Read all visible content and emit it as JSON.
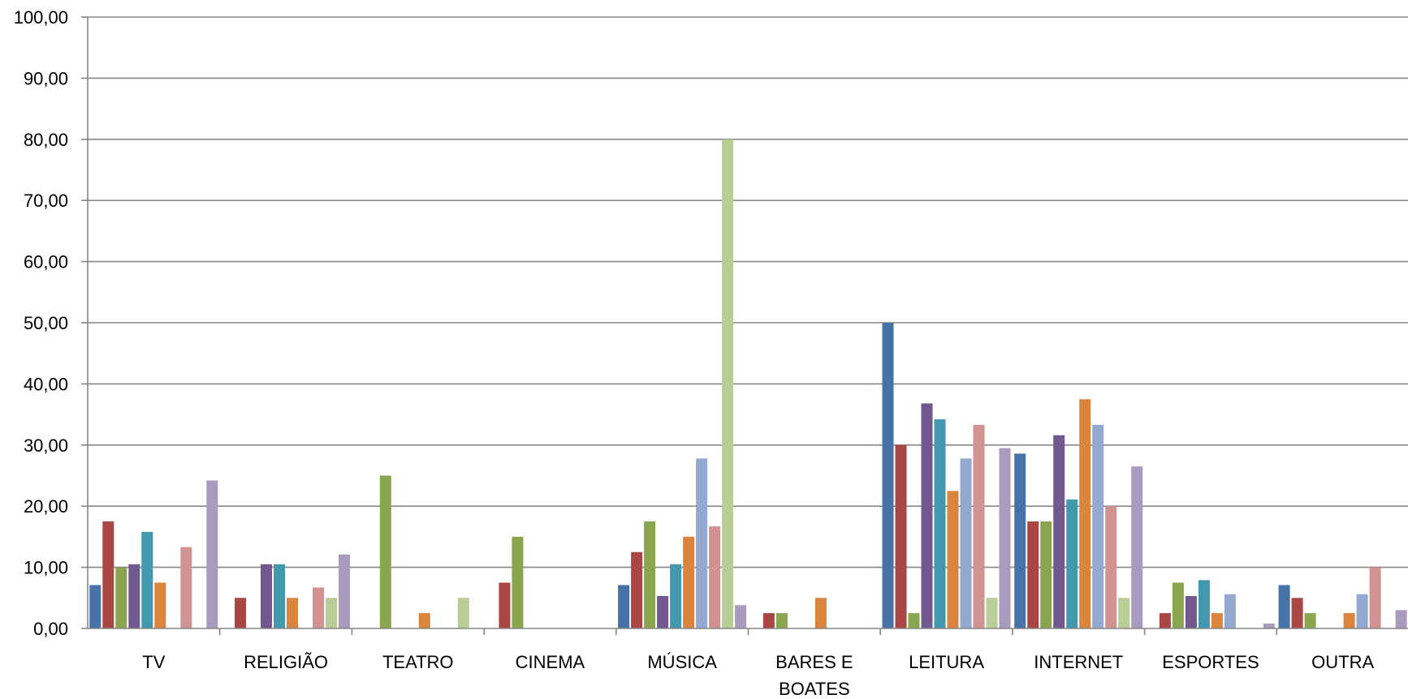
{
  "chart_data": {
    "type": "bar",
    "categories": [
      "TV",
      "RELIGIÃO",
      "TEATRO",
      "CINEMA",
      "MÚSICA",
      "BARES E BOATES",
      "LEITURA",
      "INTERNET",
      "ESPORTES",
      "OUTRA"
    ],
    "category_label_lines": [
      [
        "TV"
      ],
      [
        "RELIGIÃO"
      ],
      [
        "TEATRO"
      ],
      [
        "CINEMA"
      ],
      [
        "MÚSICA"
      ],
      [
        "BARES E",
        "BOATES"
      ],
      [
        "LEITURA"
      ],
      [
        "INTERNET"
      ],
      [
        "ESPORTES"
      ],
      [
        "OUTRA"
      ]
    ],
    "ylim": [
      0,
      100
    ],
    "yticks": [
      0,
      10,
      20,
      30,
      40,
      50,
      60,
      70,
      80,
      90,
      100
    ],
    "ytick_labels": [
      "0,00",
      "10,00",
      "20,00",
      "30,00",
      "40,00",
      "50,00",
      "60,00",
      "70,00",
      "80,00",
      "90,00",
      "100,00"
    ],
    "grid": true,
    "legend": "none",
    "series": [
      {
        "color": "#4572A7",
        "values": [
          7.1,
          0,
          0,
          0,
          7.1,
          0,
          50.0,
          28.6,
          0,
          7.1
        ]
      },
      {
        "color": "#AA4643",
        "values": [
          17.5,
          5.0,
          0,
          7.5,
          12.5,
          2.5,
          30.0,
          17.5,
          2.5,
          5.0
        ]
      },
      {
        "color": "#89A54E",
        "values": [
          10.0,
          0,
          25.0,
          15.0,
          17.5,
          2.5,
          2.5,
          17.5,
          7.5,
          2.5
        ]
      },
      {
        "color": "#71588F",
        "values": [
          10.5,
          10.5,
          0,
          0,
          5.3,
          0,
          36.8,
          31.6,
          5.3,
          0
        ]
      },
      {
        "color": "#4198AF",
        "values": [
          15.8,
          10.5,
          0,
          0,
          10.5,
          0,
          34.2,
          21.1,
          7.9,
          0
        ]
      },
      {
        "color": "#DB843D",
        "values": [
          7.5,
          5.0,
          2.5,
          0,
          15.0,
          5.0,
          22.5,
          37.5,
          2.5,
          2.5
        ]
      },
      {
        "color": "#93A9CF",
        "values": [
          0,
          0,
          0,
          0,
          27.8,
          0,
          27.8,
          33.3,
          5.6,
          5.6
        ]
      },
      {
        "color": "#D19392",
        "values": [
          13.3,
          6.7,
          0,
          0,
          16.7,
          0,
          33.3,
          20.0,
          0,
          10.0
        ]
      },
      {
        "color": "#B9CD96",
        "values": [
          0,
          5.0,
          5.0,
          0,
          80.0,
          0,
          5.0,
          5.0,
          0,
          0
        ]
      },
      {
        "color": "#A99BBD",
        "values": [
          24.2,
          12.1,
          0,
          0,
          3.8,
          0,
          29.5,
          26.5,
          0.8,
          3.0
        ]
      }
    ]
  }
}
